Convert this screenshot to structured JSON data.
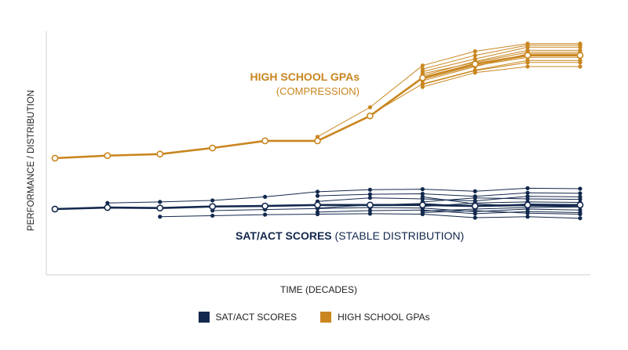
{
  "chart_data": {
    "type": "line",
    "xlabel": "TIME (DECADES)",
    "ylabel": "PERFORMANCE / DISTRIBUTION",
    "grid": false,
    "legend_position": "bottom-center",
    "x": [
      1,
      2,
      3,
      4,
      5,
      6,
      7,
      8,
      9,
      10,
      11
    ],
    "annotations": [
      {
        "series": "HIGH SCHOOL GPAs",
        "lines": [
          "HIGH SCHOOL GPAs",
          "(COMPRESSION)"
        ]
      },
      {
        "series": "SAT/ACT SCORES",
        "bold": "SAT/ACT SCORES",
        "rest": " (STABLE DISTRIBUTION)"
      }
    ],
    "series": [
      {
        "name": "HIGH SCHOOL GPAs",
        "color": "#c9861f",
        "main": [
          1.0,
          1.05,
          1.08,
          1.2,
          1.34,
          1.34,
          1.83,
          2.58,
          2.85,
          3.02,
          3.02
        ],
        "spread": [
          [
            null,
            null,
            null,
            null,
            null,
            1.42,
            2.0,
            2.82,
            3.1,
            3.25,
            3.25
          ],
          [
            null,
            null,
            null,
            null,
            null,
            null,
            1.85,
            2.46,
            2.73,
            2.92,
            2.92
          ],
          [
            null,
            null,
            null,
            null,
            null,
            null,
            null,
            2.4,
            2.68,
            2.8,
            2.8
          ],
          [
            null,
            null,
            null,
            null,
            null,
            null,
            null,
            2.7,
            2.95,
            3.18,
            3.18
          ],
          [
            null,
            null,
            null,
            null,
            null,
            null,
            null,
            2.62,
            2.9,
            3.12,
            3.12
          ],
          [
            null,
            null,
            null,
            null,
            null,
            null,
            null,
            2.52,
            2.8,
            3.05,
            3.05
          ],
          [
            null,
            null,
            null,
            null,
            null,
            null,
            null,
            2.75,
            3.02,
            3.22,
            3.22
          ],
          [
            null,
            null,
            null,
            null,
            null,
            null,
            null,
            2.45,
            2.72,
            2.88,
            2.88
          ],
          [
            null,
            null,
            null,
            null,
            null,
            null,
            null,
            2.55,
            2.82,
            2.98,
            2.98
          ],
          [
            null,
            null,
            null,
            null,
            null,
            null,
            null,
            2.66,
            2.88,
            3.08,
            3.08
          ]
        ]
      },
      {
        "name": "SAT/ACT SCORES",
        "color": "#13284d",
        "main": [
          0.0,
          0.03,
          0.02,
          0.05,
          0.06,
          0.08,
          0.08,
          0.08,
          0.06,
          0.08,
          0.08
        ],
        "spread": [
          [
            null,
            0.12,
            0.14,
            0.17,
            0.24,
            0.34,
            0.38,
            0.39,
            0.35,
            0.41,
            0.4
          ],
          [
            null,
            null,
            -0.15,
            -0.13,
            -0.11,
            -0.1,
            -0.09,
            -0.1,
            -0.17,
            -0.15,
            -0.18
          ],
          [
            null,
            null,
            null,
            -0.03,
            -0.01,
            0.01,
            0.03,
            0.02,
            -0.05,
            0.0,
            -0.02
          ],
          [
            null,
            null,
            null,
            null,
            null,
            0.26,
            0.29,
            0.3,
            0.25,
            0.32,
            0.31
          ],
          [
            null,
            null,
            null,
            null,
            null,
            0.02,
            0.08,
            0.11,
            0.05,
            0.1,
            0.09
          ],
          [
            null,
            null,
            null,
            null,
            null,
            -0.06,
            -0.03,
            -0.02,
            -0.09,
            -0.05,
            -0.07
          ],
          [
            null,
            null,
            null,
            null,
            null,
            0.15,
            0.22,
            0.2,
            0.16,
            0.25,
            0.24
          ],
          [
            null,
            null,
            null,
            null,
            null,
            null,
            null,
            0.14,
            0.22,
            0.2,
            0.19
          ],
          [
            null,
            null,
            null,
            null,
            null,
            null,
            null,
            0.05,
            0.12,
            0.14,
            0.13
          ],
          [
            null,
            null,
            null,
            null,
            null,
            null,
            null,
            -0.04,
            0.0,
            0.03,
            0.04
          ],
          [
            null,
            null,
            null,
            null,
            null,
            null,
            null,
            0.24,
            0.1,
            0.06,
            0.05
          ],
          [
            null,
            null,
            null,
            null,
            null,
            null,
            null,
            -0.07,
            -0.03,
            -0.08,
            -0.1
          ]
        ]
      }
    ]
  }
}
